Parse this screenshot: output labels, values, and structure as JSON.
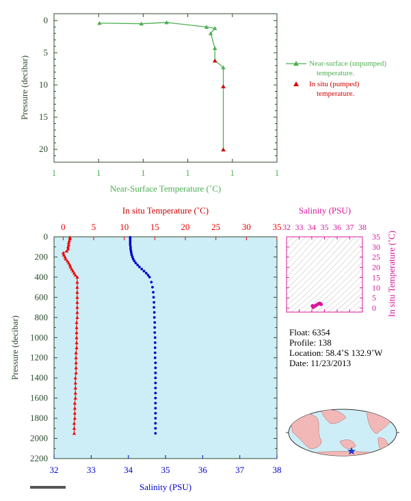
{
  "chart_data": [
    {
      "type": "line",
      "xlabel": "Near-Surface Temperature (˚C)",
      "ylabel": "Pressure (decibar)",
      "x_tick_labels": [
        "1",
        "1",
        "1",
        "1",
        "1",
        "1"
      ],
      "y_ticks": [
        0,
        5,
        10,
        15,
        20
      ],
      "ylim": [
        0,
        22
      ],
      "series": [
        {
          "name": "Near-surface (unpumped) temperature.",
          "color": "#4caf50",
          "points": [
            [
              0.2,
              0.4
            ],
            [
              0.4,
              0.5
            ],
            [
              0.52,
              0.3
            ],
            [
              0.71,
              1.0
            ],
            [
              0.75,
              1.2
            ],
            [
              0.73,
              2.0
            ],
            [
              0.75,
              4.3
            ],
            [
              0.75,
              6.2
            ],
            [
              0.79,
              7.3
            ],
            [
              0.79,
              10.2
            ],
            [
              0.79,
              20.0
            ]
          ]
        },
        {
          "name": "In situ (pumped) temperature.",
          "color": "#dd0000",
          "points": [
            [
              0.75,
              6.2
            ],
            [
              0.79,
              10.2
            ],
            [
              0.79,
              20.0
            ]
          ]
        }
      ],
      "legend": "right"
    },
    {
      "type": "line",
      "top_axis_label": "In situ Temperature (˚C)",
      "bottom_axis_label": "Salinity (PSU)",
      "ylabel": "Pressure (decibar)",
      "temperature_ticks": [
        0,
        5,
        10,
        15,
        20,
        25,
        30,
        35
      ],
      "salinity_ticks": [
        32,
        33,
        34,
        35,
        36,
        37,
        38
      ],
      "pressure_ticks": [
        0,
        200,
        400,
        600,
        800,
        1000,
        1200,
        1400,
        1600,
        1800,
        2000,
        2200
      ],
      "temperature_range": [
        -1.5,
        35
      ],
      "salinity_range": [
        32,
        38
      ],
      "pressure_range": [
        0,
        2200
      ],
      "series": [
        {
          "name": "In situ Temperature",
          "color": "#ee0000",
          "marker": "triangle",
          "points": [
            [
              1.1,
              5
            ],
            [
              1.1,
              20
            ],
            [
              1.0,
              40
            ],
            [
              0.9,
              60
            ],
            [
              0.9,
              80
            ],
            [
              0.8,
              100
            ],
            [
              0.8,
              120
            ],
            [
              0.6,
              140
            ],
            [
              0.0,
              160
            ],
            [
              0.1,
              180
            ],
            [
              0.3,
              200
            ],
            [
              0.4,
              220
            ],
            [
              0.7,
              240
            ],
            [
              0.9,
              260
            ],
            [
              1.1,
              280
            ],
            [
              1.2,
              300
            ],
            [
              1.4,
              320
            ],
            [
              1.6,
              340
            ],
            [
              1.8,
              360
            ],
            [
              2.0,
              380
            ],
            [
              2.3,
              400
            ],
            [
              2.3,
              450
            ],
            [
              2.3,
              500
            ],
            [
              2.3,
              550
            ],
            [
              2.3,
              600
            ],
            [
              2.3,
              650
            ],
            [
              2.3,
              700
            ],
            [
              2.3,
              750
            ],
            [
              2.3,
              800
            ],
            [
              2.2,
              850
            ],
            [
              2.2,
              900
            ],
            [
              2.2,
              950
            ],
            [
              2.2,
              1000
            ],
            [
              2.2,
              1050
            ],
            [
              2.2,
              1100
            ],
            [
              2.1,
              1150
            ],
            [
              2.1,
              1200
            ],
            [
              2.1,
              1250
            ],
            [
              2.1,
              1300
            ],
            [
              2.1,
              1350
            ],
            [
              2.0,
              1400
            ],
            [
              2.0,
              1450
            ],
            [
              2.0,
              1500
            ],
            [
              2.0,
              1550
            ],
            [
              2.0,
              1600
            ],
            [
              1.9,
              1650
            ],
            [
              1.9,
              1700
            ],
            [
              1.9,
              1750
            ],
            [
              1.9,
              1800
            ],
            [
              1.8,
              1850
            ],
            [
              1.8,
              1900
            ],
            [
              1.8,
              1950
            ]
          ]
        },
        {
          "name": "Salinity",
          "color": "#0000cc",
          "marker": "dot",
          "points": [
            [
              34.05,
              5
            ],
            [
              34.05,
              20
            ],
            [
              34.05,
              40
            ],
            [
              34.05,
              60
            ],
            [
              34.05,
              80
            ],
            [
              34.06,
              100
            ],
            [
              34.06,
              120
            ],
            [
              34.07,
              140
            ],
            [
              34.08,
              160
            ],
            [
              34.09,
              180
            ],
            [
              34.11,
              200
            ],
            [
              34.13,
              220
            ],
            [
              34.16,
              240
            ],
            [
              34.2,
              260
            ],
            [
              34.25,
              280
            ],
            [
              34.3,
              300
            ],
            [
              34.36,
              320
            ],
            [
              34.42,
              340
            ],
            [
              34.48,
              360
            ],
            [
              34.53,
              380
            ],
            [
              34.57,
              400
            ],
            [
              34.62,
              450
            ],
            [
              34.65,
              500
            ],
            [
              34.67,
              550
            ],
            [
              34.68,
              600
            ],
            [
              34.69,
              650
            ],
            [
              34.69,
              700
            ],
            [
              34.7,
              750
            ],
            [
              34.7,
              800
            ],
            [
              34.71,
              850
            ],
            [
              34.71,
              900
            ],
            [
              34.71,
              950
            ],
            [
              34.72,
              1000
            ],
            [
              34.72,
              1050
            ],
            [
              34.72,
              1100
            ],
            [
              34.72,
              1150
            ],
            [
              34.72,
              1200
            ],
            [
              34.73,
              1250
            ],
            [
              34.73,
              1300
            ],
            [
              34.73,
              1350
            ],
            [
              34.73,
              1400
            ],
            [
              34.73,
              1450
            ],
            [
              34.73,
              1500
            ],
            [
              34.73,
              1550
            ],
            [
              34.73,
              1600
            ],
            [
              34.73,
              1650
            ],
            [
              34.73,
              1700
            ],
            [
              34.73,
              1750
            ],
            [
              34.73,
              1800
            ],
            [
              34.73,
              1850
            ],
            [
              34.73,
              1900
            ],
            [
              34.73,
              1950
            ]
          ]
        }
      ]
    },
    {
      "type": "scatter",
      "title": "Salinity (PSU)",
      "ylabel": "In situ Temperature (˚C)",
      "x_ticks": [
        32,
        33,
        34,
        35,
        36,
        37,
        38
      ],
      "y_ticks": [
        0,
        5,
        10,
        15,
        20,
        25,
        30,
        35
      ],
      "xlim": [
        32,
        38
      ],
      "ylim": [
        -2,
        35
      ],
      "cluster": [
        [
          34.05,
          1.1
        ],
        [
          34.1,
          0.4
        ],
        [
          34.2,
          0.9
        ],
        [
          34.35,
          1.4
        ],
        [
          34.5,
          2.0
        ],
        [
          34.6,
          2.3
        ],
        [
          34.65,
          2.2
        ],
        [
          34.7,
          2.0
        ],
        [
          34.73,
          1.8
        ],
        [
          34.3,
          1.2
        ],
        [
          34.15,
          0.8
        ]
      ]
    }
  ],
  "colors": {
    "plot_bg": "#cdeef6",
    "axis_dark": "#2e4a2e",
    "green": "#4caf50",
    "red": "#ee0000",
    "blue": "#0000cc",
    "magenta": "#d8179b"
  },
  "info": {
    "float": "Float:  6354",
    "profile": "Profile:  138",
    "location": "Location:  58.4˚S  132.9˚W",
    "date": "Date:  11/23/2013"
  },
  "map": {
    "marker_icon": "star-icon"
  }
}
